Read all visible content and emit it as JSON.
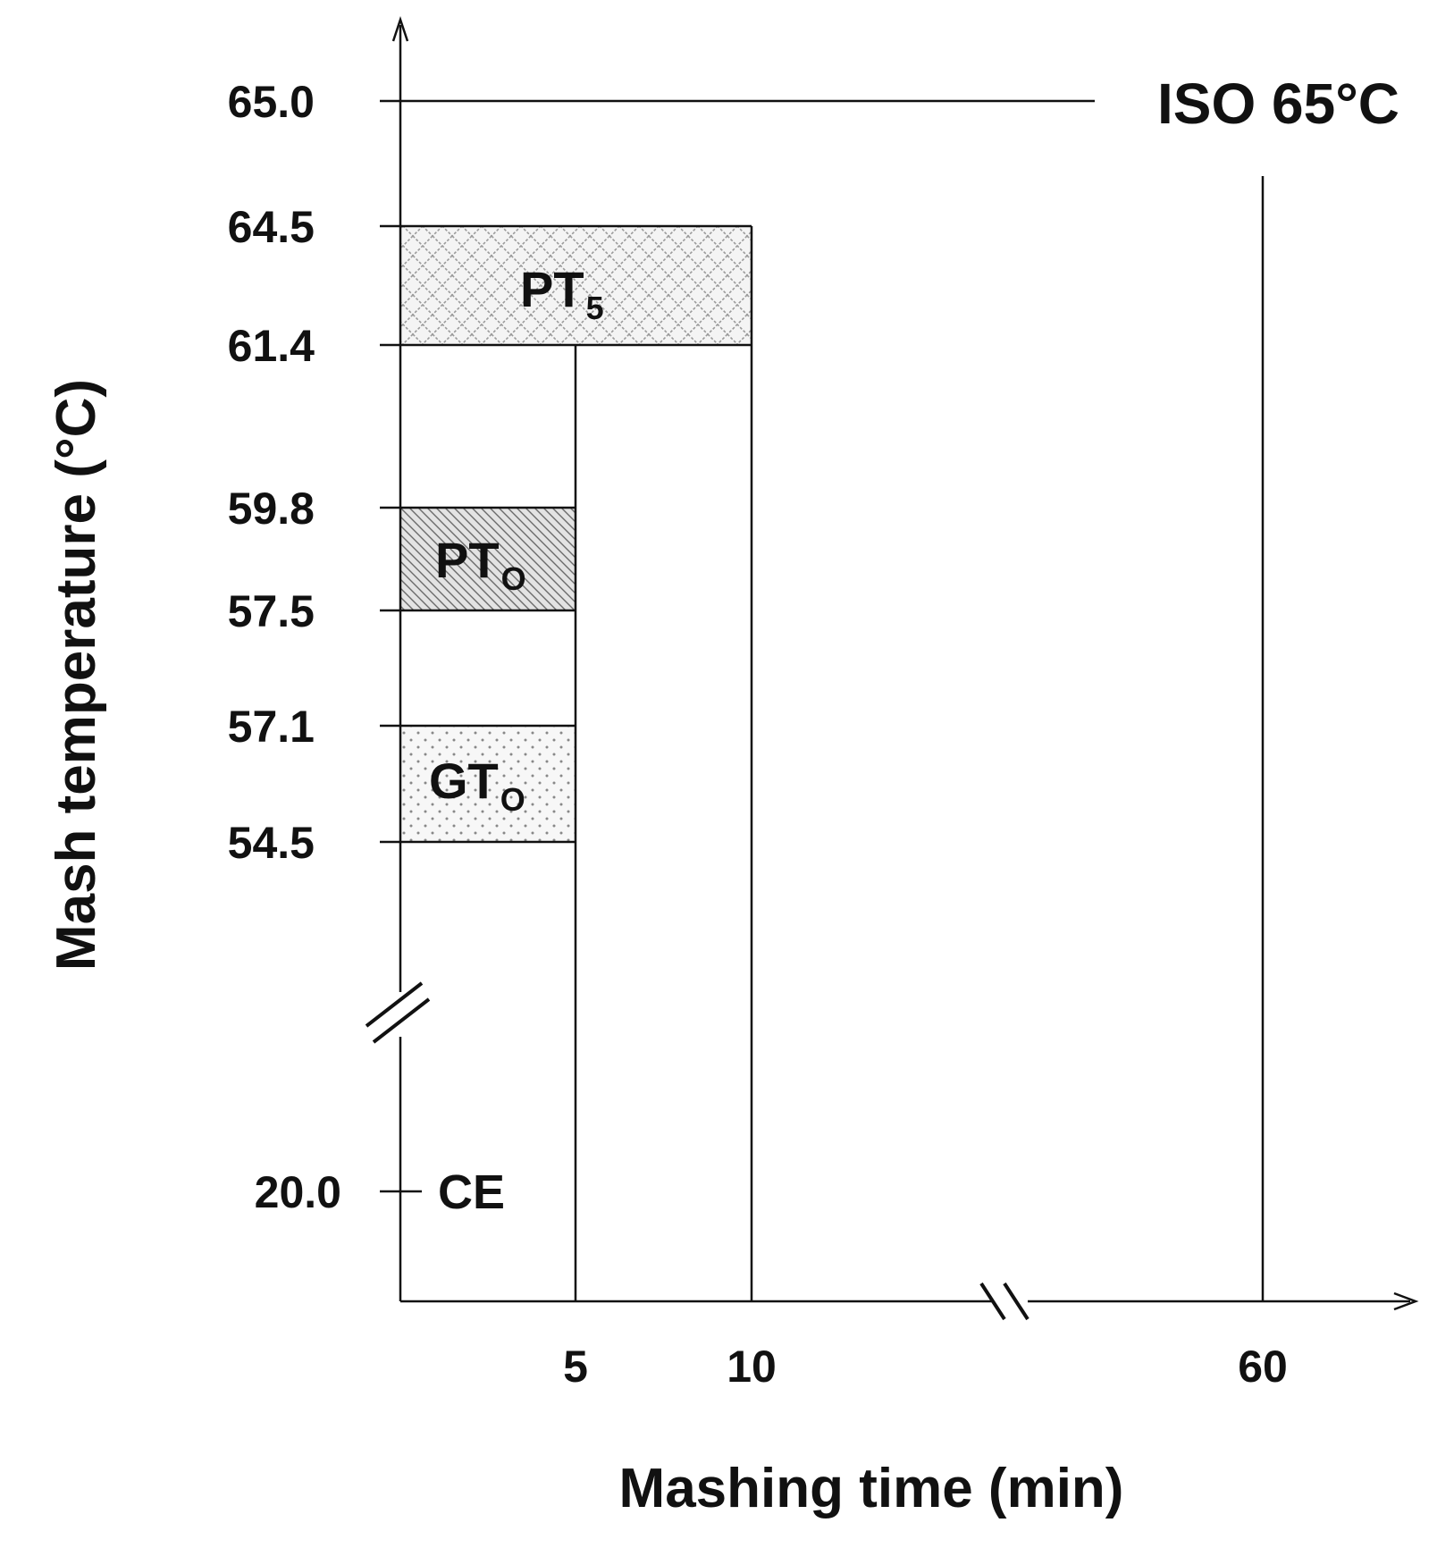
{
  "chart_data": {
    "type": "diagram",
    "xlabel": "Mashing time (min)",
    "ylabel": "Mash temperature (°C)",
    "x_ticks": [
      "5",
      "10",
      "60"
    ],
    "y_ticks": [
      "65.0",
      "64.5",
      "61.4",
      "59.8",
      "57.5",
      "57.1",
      "54.5",
      "20.0"
    ],
    "regions": [
      {
        "label": "PT",
        "sub": "5",
        "temp_min": 61.4,
        "temp_max": 64.5,
        "time_max": 10,
        "pattern": "crosshatch"
      },
      {
        "label": "PT",
        "sub": "O",
        "temp_min": 57.5,
        "temp_max": 59.8,
        "time_max": 5,
        "pattern": "diagonal"
      },
      {
        "label": "GT",
        "sub": "O",
        "temp_min": 54.5,
        "temp_max": 57.1,
        "time_max": 5,
        "pattern": "dots"
      }
    ],
    "isothermal": {
      "label": "ISO 65°C",
      "temp": 65.0,
      "time": 60
    },
    "reference": {
      "label": "CE",
      "temp": 20.0
    },
    "axis_breaks": [
      "y",
      "x"
    ]
  }
}
